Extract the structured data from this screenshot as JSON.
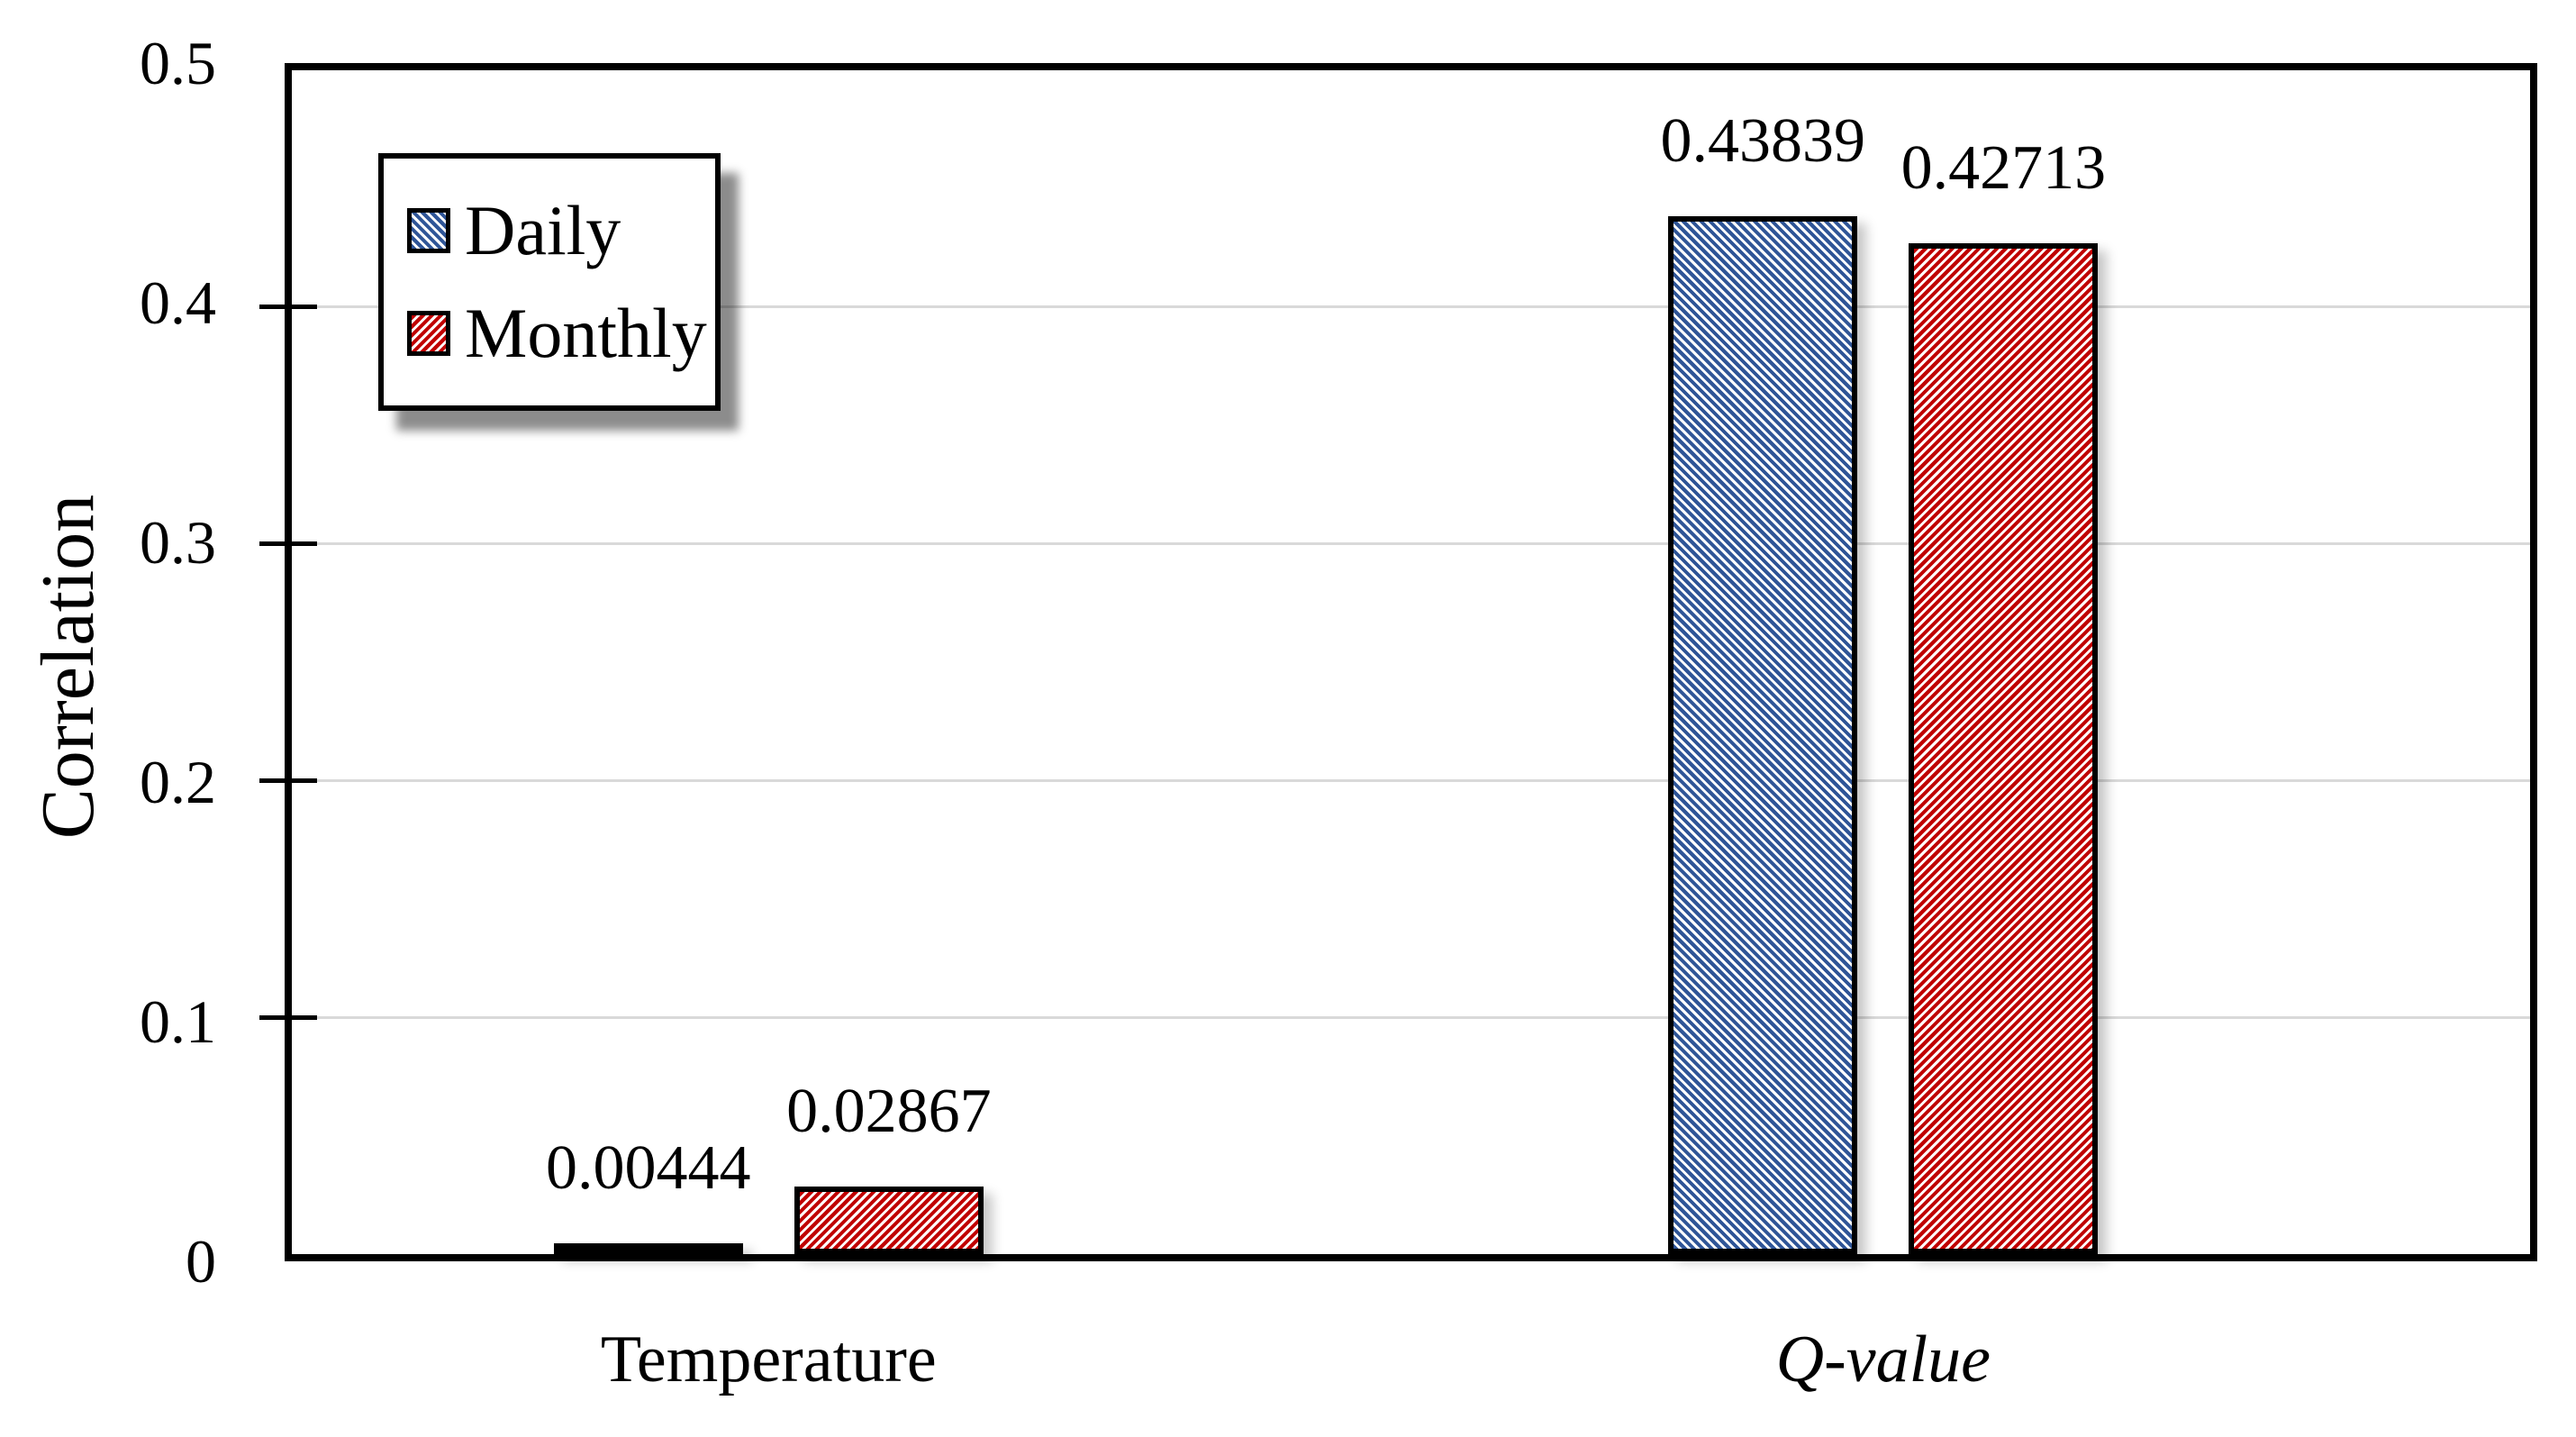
{
  "chart_data": {
    "type": "bar",
    "title": "",
    "xlabel": "",
    "ylabel": "Correlation",
    "ylim": [
      0,
      0.5
    ],
    "y_ticks": [
      "0",
      "0.1",
      "0.2",
      "0.3",
      "0.4",
      "0.5"
    ],
    "grid": "horizontal",
    "grid_color": "#D9D9D9",
    "axis_color": "#000000",
    "text_color": "#000000",
    "legend_position": "inside-top-left",
    "categories": [
      {
        "label": "Temperature",
        "italic": false
      },
      {
        "label": "Q-value",
        "italic": true
      }
    ],
    "series": [
      {
        "name": "Daily",
        "color": "#2F5597",
        "hatch": "diagonal-down",
        "values": [
          0.00444,
          0.43839
        ],
        "labels": [
          "0.00444",
          "0.43839"
        ]
      },
      {
        "name": "Monthly",
        "color": "#C00000",
        "hatch": "diagonal-up",
        "values": [
          0.02867,
          0.42713
        ],
        "labels": [
          "0.02867",
          "0.42713"
        ]
      }
    ]
  }
}
